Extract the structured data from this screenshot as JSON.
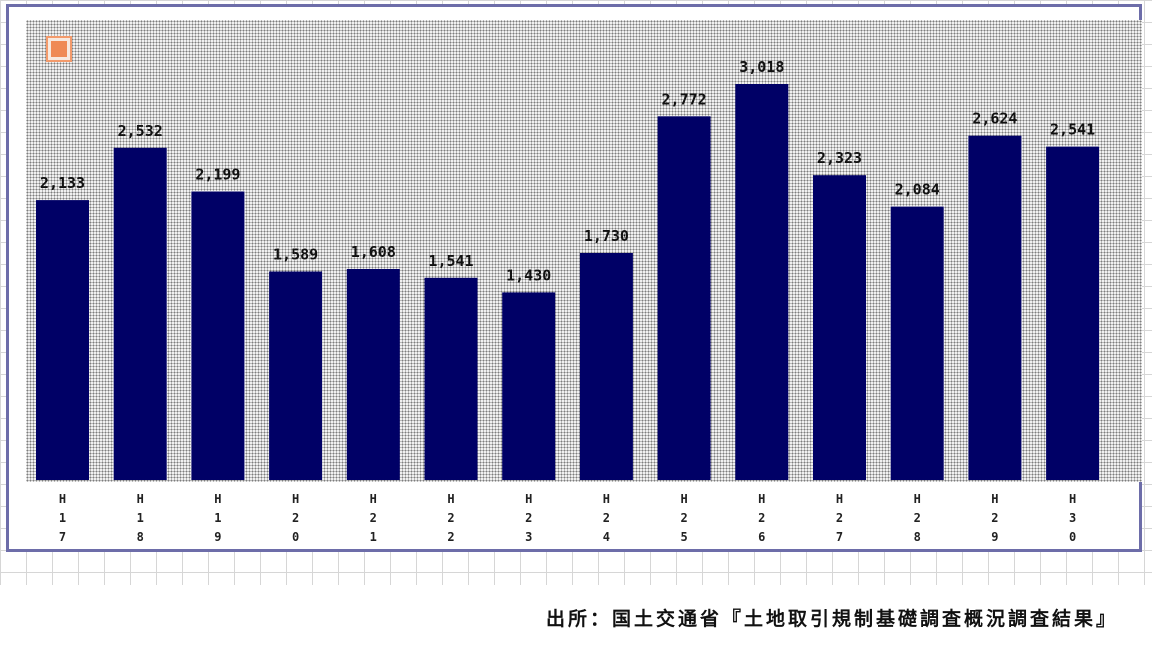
{
  "chart_data": {
    "type": "bar",
    "title": "",
    "xlabel": "",
    "ylabel": "",
    "categories": [
      "H17",
      "H18",
      "H19",
      "H20",
      "H21",
      "H22",
      "H23",
      "H24",
      "H25",
      "H26",
      "H27",
      "H28",
      "H29",
      "H30"
    ],
    "category_labels": [
      "H\n1\n7",
      "H\n1\n8",
      "H\n1\n9",
      "H\n2\n0",
      "H\n2\n1",
      "H\n2\n2",
      "H\n2\n3",
      "H\n2\n4",
      "H\n2\n5",
      "H\n2\n6",
      "H\n2\n7",
      "H\n2\n8",
      "H\n2\n9",
      "H\n3\n0"
    ],
    "values": [
      2133,
      2532,
      2199,
      1589,
      1608,
      1541,
      1430,
      1730,
      2772,
      3018,
      2323,
      2084,
      2624,
      2541
    ],
    "value_labels": [
      "2,133",
      "2,532",
      "2,199",
      "1,589",
      "1,608",
      "1,541",
      "1,430",
      "1,730",
      "2,772",
      "3,018",
      "2,323",
      "2,084",
      "2,624",
      "2,541"
    ],
    "ylim": [
      0,
      3300
    ],
    "grid": false,
    "legend": "none",
    "bar_color": "#000066"
  },
  "source_note": "出所：国土交通省『土地取引規制基礎調査概況調査結果』",
  "badge_icon": "orange-square-icon"
}
